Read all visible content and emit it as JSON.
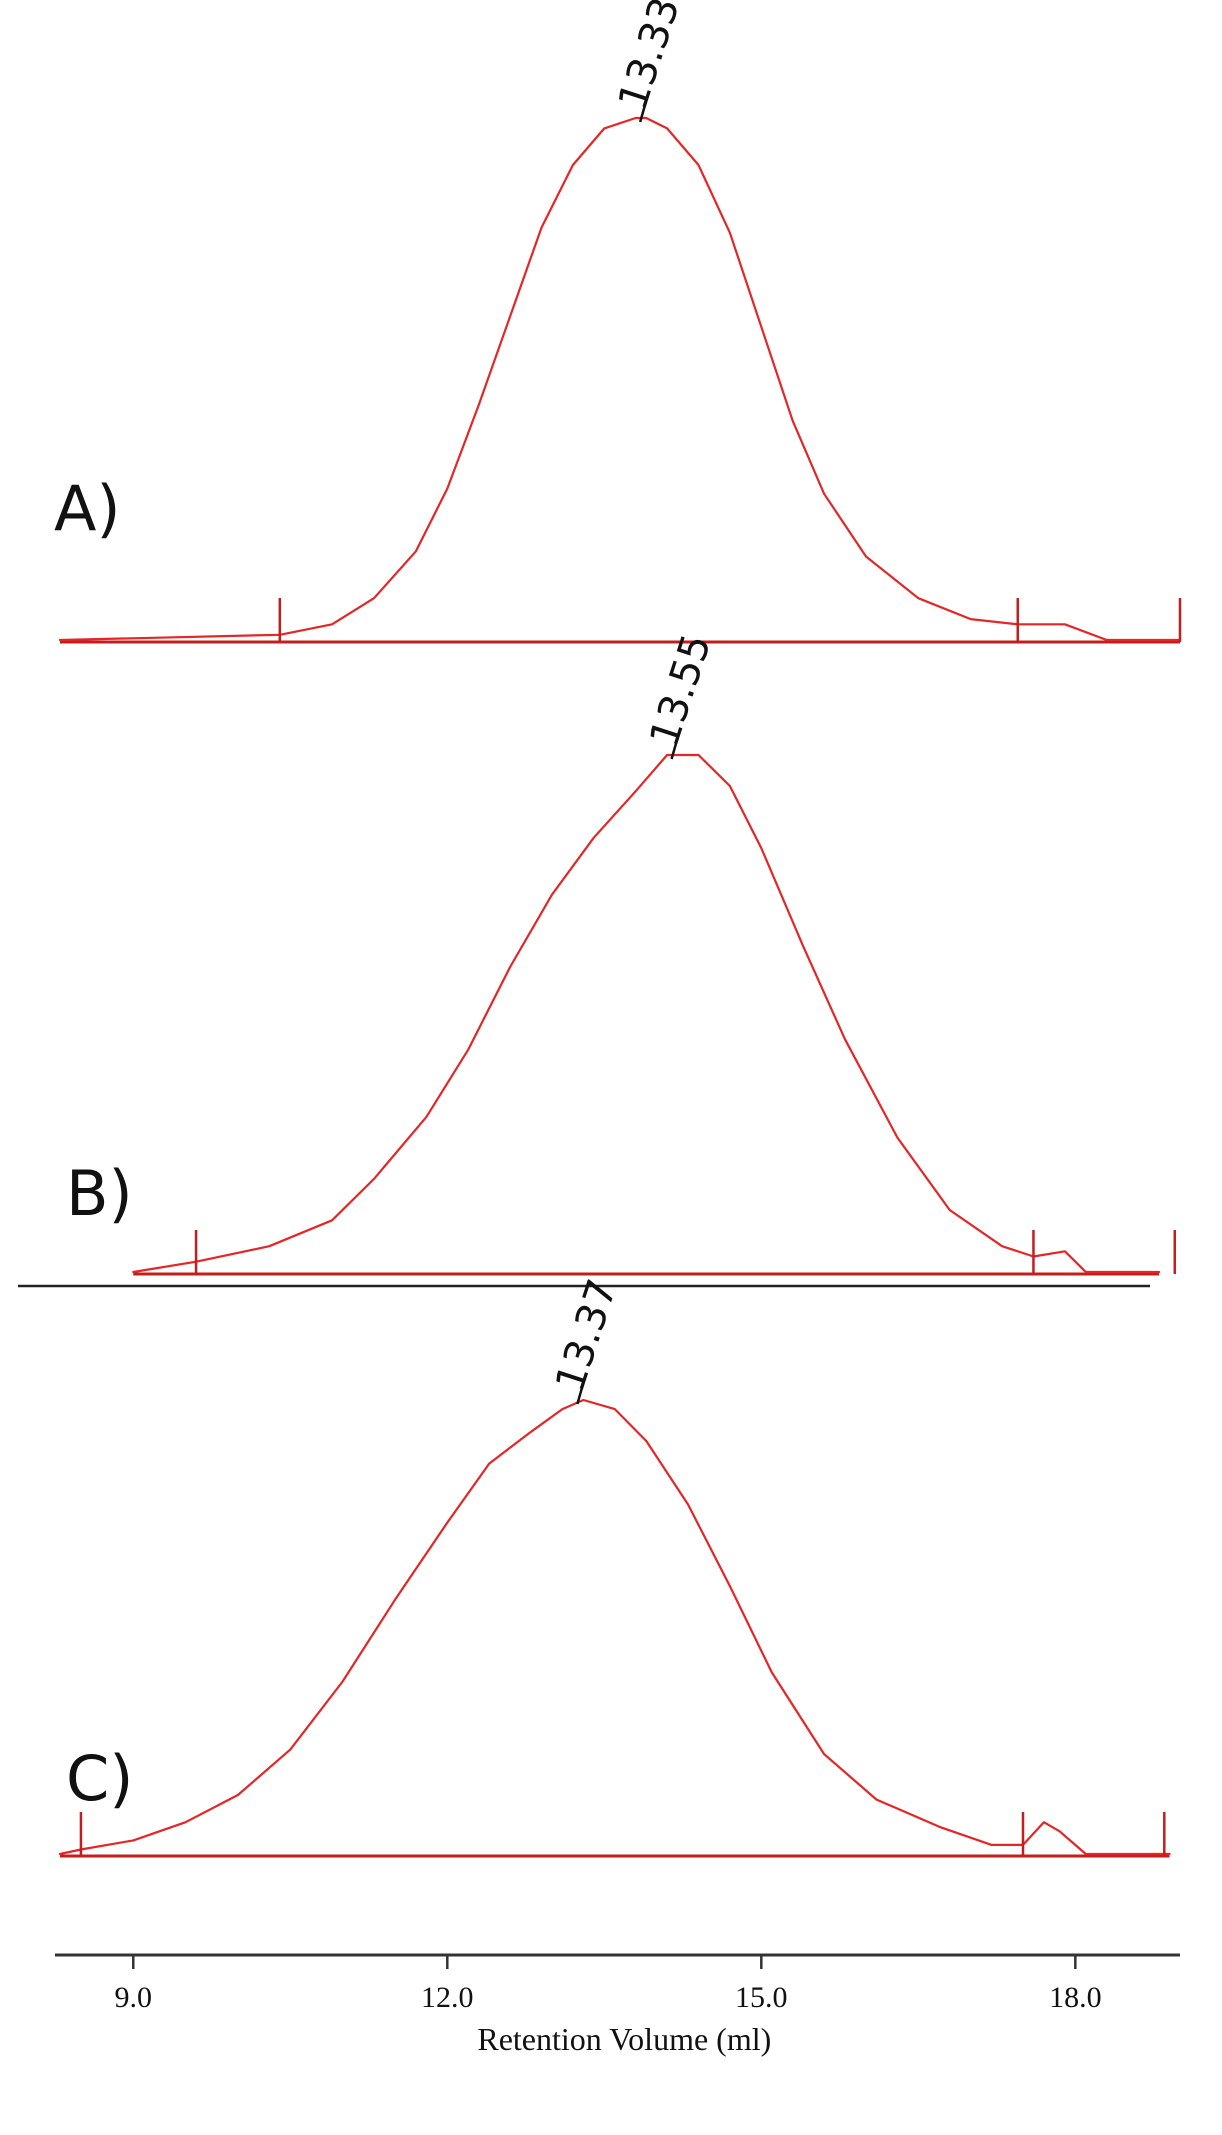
{
  "colors": {
    "trace": "#e32626",
    "baseline": "#c21e1e",
    "axis": "#333333",
    "text": "#111111"
  },
  "chart_data": {
    "type": "line",
    "xlabel": "Retention Volume (ml)",
    "xlim": [
      8.3,
      19.0
    ],
    "xticks": [
      9.0,
      12.0,
      15.0,
      18.0
    ],
    "xtick_labels": [
      "9.0",
      "12.0",
      "15.0",
      "18.0"
    ],
    "grid": false,
    "series": [
      {
        "label": "A)",
        "peak_label": "13.33",
        "peak_x": 13.9,
        "integration_markers": [
          10.4,
          17.45,
          19.0
        ],
        "x": [
          8.3,
          10.4,
          10.9,
          11.3,
          11.7,
          12.0,
          12.3,
          12.6,
          12.9,
          13.2,
          13.5,
          13.8,
          13.9,
          14.1,
          14.4,
          14.7,
          15.0,
          15.3,
          15.6,
          16.0,
          16.5,
          17.0,
          17.45,
          17.9,
          18.3,
          19.0
        ],
        "y": [
          0,
          0.01,
          0.03,
          0.08,
          0.17,
          0.29,
          0.45,
          0.62,
          0.79,
          0.91,
          0.98,
          1.0,
          1.0,
          0.98,
          0.91,
          0.78,
          0.6,
          0.42,
          0.28,
          0.16,
          0.08,
          0.04,
          0.03,
          0.03,
          0.0,
          0.0
        ]
      },
      {
        "label": "B)",
        "peak_label": "13.55",
        "peak_x": 14.2,
        "integration_markers": [
          9.6,
          17.6,
          18.95
        ],
        "x": [
          9.0,
          9.6,
          10.3,
          10.9,
          11.3,
          11.8,
          12.2,
          12.6,
          13.0,
          13.4,
          13.8,
          14.1,
          14.4,
          14.7,
          15.0,
          15.4,
          15.8,
          16.3,
          16.8,
          17.3,
          17.6,
          17.9,
          18.1,
          18.8
        ],
        "y": [
          0,
          0.02,
          0.05,
          0.1,
          0.18,
          0.3,
          0.43,
          0.59,
          0.73,
          0.84,
          0.93,
          1.0,
          1.0,
          0.94,
          0.82,
          0.63,
          0.45,
          0.26,
          0.12,
          0.05,
          0.03,
          0.04,
          0.0,
          0.0
        ]
      },
      {
        "label": "C)",
        "peak_label": "13.37",
        "peak_x": 13.3,
        "integration_markers": [
          8.5,
          17.5,
          18.85
        ],
        "x": [
          8.3,
          8.5,
          9.0,
          9.5,
          10.0,
          10.5,
          11.0,
          11.5,
          12.0,
          12.4,
          12.8,
          13.1,
          13.3,
          13.6,
          13.9,
          14.3,
          14.7,
          15.1,
          15.6,
          16.1,
          16.7,
          17.2,
          17.5,
          17.7,
          17.85,
          18.1,
          18.9
        ],
        "y": [
          0,
          0.01,
          0.03,
          0.07,
          0.13,
          0.23,
          0.38,
          0.56,
          0.73,
          0.86,
          0.93,
          0.98,
          1.0,
          0.98,
          0.91,
          0.77,
          0.59,
          0.4,
          0.22,
          0.12,
          0.06,
          0.02,
          0.02,
          0.07,
          0.05,
          0.0,
          0.0
        ]
      }
    ]
  }
}
